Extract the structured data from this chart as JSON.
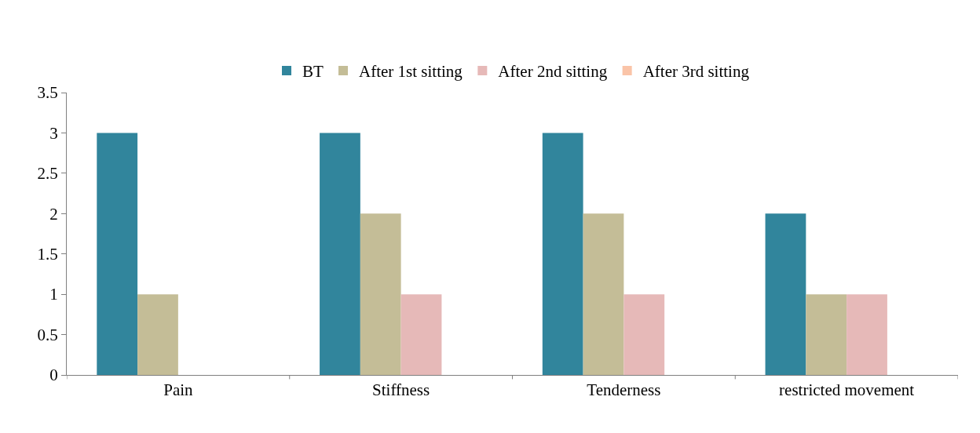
{
  "chart_data": {
    "type": "bar",
    "categories": [
      "Pain",
      "Stiffness",
      "Tenderness",
      "restricted movement"
    ],
    "series": [
      {
        "name": "BT",
        "color": "#31859c",
        "values": [
          3,
          3,
          3,
          2
        ]
      },
      {
        "name": "After 1st sitting",
        "color": "#c4bd97",
        "values": [
          1,
          2,
          2,
          1
        ]
      },
      {
        "name": "After 2nd sitting",
        "color": "#e6b9b8",
        "values": [
          0,
          1,
          1,
          1
        ]
      },
      {
        "name": "After 3rd sitting",
        "color": "#fac4a8",
        "values": [
          0,
          0,
          0,
          0
        ]
      }
    ],
    "ylim": [
      0,
      3.5
    ],
    "yticks": [
      0,
      0.5,
      1,
      1.5,
      2,
      2.5,
      3,
      3.5
    ],
    "grid": false,
    "legend": "top"
  }
}
